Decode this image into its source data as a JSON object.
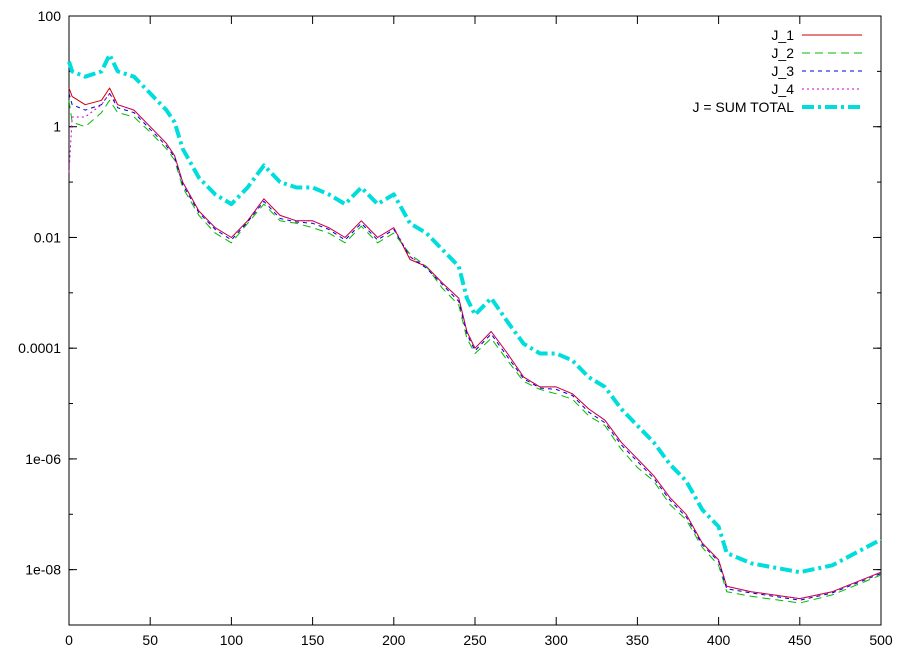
{
  "chart_data": {
    "type": "line",
    "title": "",
    "xlabel": "",
    "ylabel": "",
    "xlim": [
      0,
      500
    ],
    "ylim": [
      1e-09,
      100
    ],
    "yscale": "log",
    "grid": false,
    "legend_position": "top-right",
    "x_ticks": [
      "0",
      "50",
      "100",
      "150",
      "200",
      "250",
      "300",
      "350",
      "400",
      "450",
      "500"
    ],
    "y_ticks": [
      "100",
      "1",
      "0.01",
      "0.0001",
      "1e-06",
      "1e-08"
    ],
    "series": [
      {
        "name": "J_1",
        "color": "#cc0000",
        "dash": "solid",
        "x": [
          0,
          2,
          10,
          20,
          25,
          30,
          40,
          50,
          60,
          65,
          70,
          80,
          90,
          100,
          110,
          120,
          130,
          140,
          150,
          160,
          170,
          180,
          190,
          200,
          210,
          220,
          230,
          240,
          245,
          250,
          260,
          270,
          280,
          290,
          300,
          310,
          320,
          330,
          340,
          350,
          360,
          370,
          380,
          390,
          400,
          405,
          420,
          450,
          470,
          500
        ],
        "y": [
          5,
          3.5,
          2.5,
          3,
          5,
          2.5,
          2,
          1,
          0.5,
          0.3,
          0.1,
          0.03,
          0.015,
          0.01,
          0.02,
          0.05,
          0.025,
          0.02,
          0.02,
          0.015,
          0.01,
          0.02,
          0.01,
          0.015,
          0.004,
          0.003,
          0.0015,
          0.0008,
          0.0002,
          0.0001,
          0.0002,
          8e-05,
          3e-05,
          2e-05,
          2e-05,
          1.5e-05,
          8e-06,
          5e-06,
          2e-06,
          1e-06,
          5e-07,
          2e-07,
          1e-07,
          3e-08,
          1.5e-08,
          5e-09,
          4e-09,
          3e-09,
          4e-09,
          9e-09
        ]
      },
      {
        "name": "J_2",
        "color": "#00bb00",
        "dash": "8,5",
        "x": [
          0,
          2,
          10,
          20,
          25,
          30,
          40,
          50,
          60,
          65,
          70,
          80,
          90,
          100,
          110,
          120,
          130,
          140,
          150,
          160,
          170,
          180,
          190,
          200,
          210,
          220,
          230,
          240,
          245,
          250,
          260,
          270,
          280,
          290,
          300,
          310,
          320,
          330,
          340,
          350,
          360,
          370,
          380,
          390,
          400,
          405,
          420,
          450,
          470,
          500
        ],
        "y": [
          3,
          1.2,
          1,
          1.8,
          3,
          1.8,
          1.5,
          0.8,
          0.4,
          0.25,
          0.08,
          0.025,
          0.012,
          0.008,
          0.018,
          0.04,
          0.02,
          0.018,
          0.015,
          0.012,
          0.008,
          0.016,
          0.008,
          0.012,
          0.005,
          0.003,
          0.0012,
          0.0006,
          0.00015,
          8e-05,
          0.00015,
          6e-05,
          2.5e-05,
          1.8e-05,
          1.5e-05,
          1.2e-05,
          6e-06,
          4e-06,
          1.5e-06,
          7e-07,
          4e-07,
          1.5e-07,
          8e-08,
          2.5e-08,
          1.2e-08,
          4e-09,
          3.3e-09,
          2.5e-09,
          3.5e-09,
          8e-09
        ]
      },
      {
        "name": "J_3",
        "color": "#0000cc",
        "dash": "4,4",
        "x": [
          0,
          2,
          10,
          20,
          25,
          30,
          40,
          50,
          60,
          65,
          70,
          80,
          90,
          100,
          110,
          120,
          130,
          140,
          150,
          160,
          170,
          180,
          190,
          200,
          210,
          220,
          230,
          240,
          245,
          250,
          260,
          270,
          280,
          290,
          300,
          310,
          320,
          330,
          340,
          350,
          360,
          370,
          380,
          390,
          400,
          405,
          420,
          450,
          470,
          500
        ],
        "y": [
          4,
          2.5,
          2,
          2.5,
          4,
          2.2,
          1.8,
          0.9,
          0.45,
          0.28,
          0.09,
          0.028,
          0.014,
          0.009,
          0.019,
          0.045,
          0.022,
          0.019,
          0.018,
          0.014,
          0.009,
          0.018,
          0.009,
          0.014,
          0.0045,
          0.0028,
          0.0014,
          0.0007,
          0.00018,
          9e-05,
          0.00018,
          7e-05,
          2.8e-05,
          1.9e-05,
          1.8e-05,
          1.4e-05,
          7e-06,
          4.5e-06,
          1.8e-06,
          9e-07,
          4.5e-07,
          1.8e-07,
          9e-08,
          2.8e-08,
          1.4e-08,
          4.5e-09,
          3.8e-09,
          2.8e-09,
          3.8e-09,
          8.5e-09
        ]
      },
      {
        "name": "J_4",
        "color": "#cc00cc",
        "dash": "2,3",
        "x": [
          0,
          2,
          10,
          20,
          25,
          30,
          40,
          50,
          60,
          65,
          70,
          80,
          90,
          100,
          110,
          120,
          130,
          140,
          150,
          160,
          170,
          180,
          190,
          200,
          210,
          220,
          230,
          240,
          245,
          250,
          260,
          270,
          280,
          290,
          300,
          310,
          320,
          330,
          340,
          350,
          360,
          370,
          380,
          390,
          400,
          405,
          420,
          450,
          470,
          500
        ],
        "y": [
          0.15,
          1.5,
          1.5,
          2.5,
          4,
          2.5,
          2,
          1,
          0.5,
          0.3,
          0.1,
          0.03,
          0.015,
          0.01,
          0.02,
          0.05,
          0.025,
          0.02,
          0.02,
          0.015,
          0.01,
          0.02,
          0.01,
          0.015,
          0.0045,
          0.003,
          0.0015,
          0.0008,
          0.0002,
          0.0001,
          0.0002,
          8e-05,
          3e-05,
          2e-05,
          2e-05,
          1.5e-05,
          8e-06,
          5e-06,
          2e-06,
          1e-06,
          5e-07,
          2e-07,
          1e-07,
          3e-08,
          1.5e-08,
          5e-09,
          4e-09,
          3e-09,
          4e-09,
          9e-09
        ]
      },
      {
        "name": "J = SUM TOTAL",
        "color": "#00dddd",
        "dash": "12,4,3,4",
        "x": [
          0,
          2,
          10,
          20,
          25,
          30,
          40,
          50,
          60,
          65,
          70,
          80,
          90,
          100,
          110,
          120,
          130,
          140,
          150,
          160,
          170,
          180,
          190,
          200,
          210,
          220,
          230,
          240,
          245,
          250,
          260,
          270,
          280,
          290,
          300,
          310,
          320,
          330,
          340,
          350,
          360,
          370,
          380,
          390,
          400,
          405,
          420,
          450,
          470,
          500
        ],
        "y": [
          15,
          10,
          8,
          10,
          20,
          10,
          8,
          4,
          2,
          1.2,
          0.4,
          0.12,
          0.06,
          0.04,
          0.08,
          0.2,
          0.1,
          0.08,
          0.08,
          0.06,
          0.04,
          0.08,
          0.04,
          0.06,
          0.018,
          0.012,
          0.006,
          0.003,
          0.0008,
          0.0004,
          0.0008,
          0.0003,
          0.00012,
          8e-05,
          8e-05,
          6e-05,
          3e-05,
          2e-05,
          8e-06,
          4e-06,
          2e-06,
          8e-07,
          4e-07,
          1.2e-07,
          6e-08,
          2e-08,
          1.3e-08,
          9e-09,
          1.2e-08,
          3.5e-08
        ]
      }
    ]
  }
}
